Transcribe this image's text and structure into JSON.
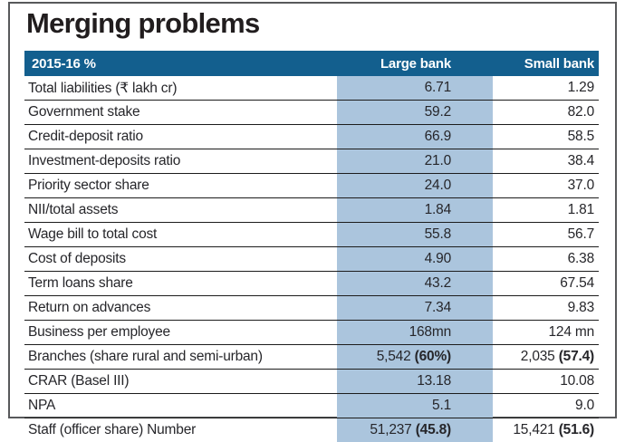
{
  "title": "Merging problems",
  "colors": {
    "header_bg": "#135f8e",
    "highlight_column_bg": "#abc5dd",
    "header_text": "#ffffff",
    "body_text": "#26262a",
    "row_divider": "#1c1c1c",
    "outer_border": "#58595b"
  },
  "chart_data": {
    "type": "table",
    "title": "Merging problems",
    "columns": [
      "2015-16 %",
      "Large bank",
      "Small bank"
    ],
    "layout_hints": {
      "highlighted_column": "Large bank",
      "header_style": "dark-blue bar, white bold text",
      "row_dividers": "thin black lines, none under last row"
    },
    "rows": [
      {
        "label": "Total liabilities (₹ lakh cr)",
        "large": "6.71",
        "large_bold": "",
        "small": "1.29",
        "small_bold": ""
      },
      {
        "label": "Government stake",
        "large": "59.2",
        "large_bold": "",
        "small": "82.0",
        "small_bold": ""
      },
      {
        "label": "Credit-deposit ratio",
        "large": "66.9",
        "large_bold": "",
        "small": "58.5",
        "small_bold": ""
      },
      {
        "label": "Investment-deposits ratio",
        "large": "21.0",
        "large_bold": "",
        "small": "38.4",
        "small_bold": ""
      },
      {
        "label": "Priority sector share",
        "large": "24.0",
        "large_bold": "",
        "small": "37.0",
        "small_bold": ""
      },
      {
        "label": "NII/total assets",
        "large": "1.84",
        "large_bold": "",
        "small": "1.81",
        "small_bold": ""
      },
      {
        "label": "Wage bill to total cost",
        "large": "55.8",
        "large_bold": "",
        "small": "56.7",
        "small_bold": ""
      },
      {
        "label": "Cost of deposits",
        "large": "4.90",
        "large_bold": "",
        "small": "6.38",
        "small_bold": ""
      },
      {
        "label": "Term loans  share",
        "large": "43.2",
        "large_bold": "",
        "small": "67.54",
        "small_bold": ""
      },
      {
        "label": "Return on advances",
        "large": "7.34",
        "large_bold": "",
        "small": "9.83",
        "small_bold": ""
      },
      {
        "label": "Business per employee",
        "large": "168mn",
        "large_bold": "",
        "small": "124 mn",
        "small_bold": ""
      },
      {
        "label": "Branches (share rural and semi-urban)",
        "large": "5,542 ",
        "large_bold": "(60%)",
        "small": "2,035 ",
        "small_bold": "(57.4)"
      },
      {
        "label": "CRAR (Basel III)",
        "large": "13.18",
        "large_bold": "",
        "small": "10.08",
        "small_bold": ""
      },
      {
        "label": "NPA",
        "large": "5.1",
        "large_bold": "",
        "small": "9.0",
        "small_bold": ""
      },
      {
        "label": "Staff (officer share) Number",
        "large": "51,237 ",
        "large_bold": "(45.8)",
        "small": "15,421 ",
        "small_bold": "(51.6)"
      }
    ]
  }
}
